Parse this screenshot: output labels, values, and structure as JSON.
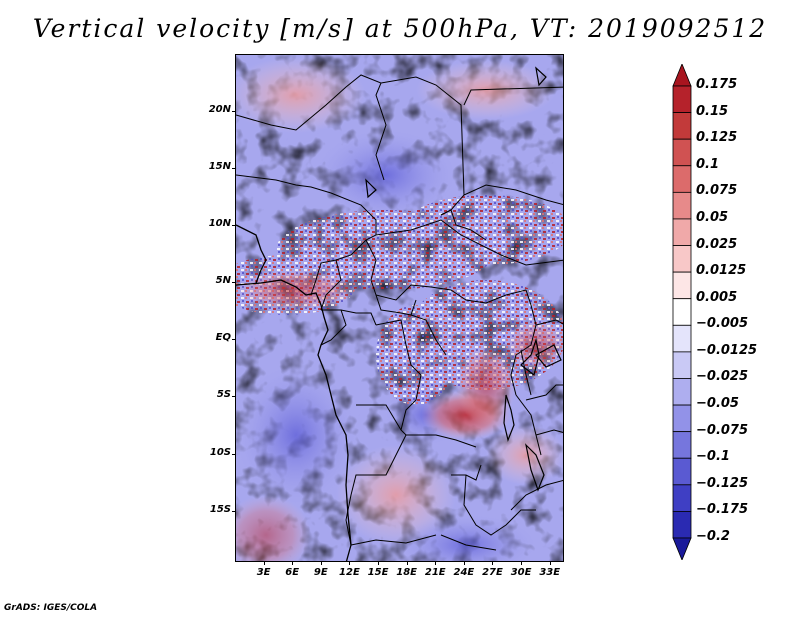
{
  "title": "Vertical velocity [m/s] at 500hPa, VT: 2019092512",
  "footer": "GrADS: IGES/COLA",
  "map": {
    "lat_ticks": [
      "20N",
      "15N",
      "10N",
      "5N",
      "EQ",
      "5S",
      "10S",
      "15S"
    ],
    "lat_values": [
      20,
      15,
      10,
      5,
      0,
      -5,
      -10,
      -15
    ],
    "lon_ticks": [
      "3E",
      "6E",
      "9E",
      "12E",
      "15E",
      "18E",
      "21E",
      "24E",
      "27E",
      "30E",
      "33E"
    ],
    "lon_values": [
      3,
      6,
      9,
      12,
      15,
      18,
      21,
      24,
      27,
      30,
      33
    ],
    "lon_range": [
      0,
      34.5
    ],
    "lat_range": [
      -19.5,
      25
    ]
  },
  "colorbar": {
    "labels": [
      "0.175",
      "0.15",
      "0.125",
      "0.1",
      "0.075",
      "0.05",
      "0.025",
      "0.0125",
      "0.005",
      "−0.005",
      "−0.0125",
      "−0.025",
      "−0.05",
      "−0.075",
      "−0.1",
      "−0.125",
      "−0.175",
      "−0.2"
    ],
    "colors": [
      "#a8151f",
      "#b5222b",
      "#c23a3a",
      "#d05252",
      "#dc6b6b",
      "#e78a8a",
      "#f0a9a9",
      "#f8c8c8",
      "#fde6e6",
      "#ffffff",
      "#e4e4fb",
      "#c9c9f5",
      "#aeaeef",
      "#9292e8",
      "#7676dd",
      "#5a5ad2",
      "#3f3fc4",
      "#2a2ab2",
      "#1a1a9a"
    ]
  },
  "colors": {
    "positive_max": "#a8151f",
    "negative_max": "#1a1a9a",
    "neutral": "#ffffff"
  }
}
